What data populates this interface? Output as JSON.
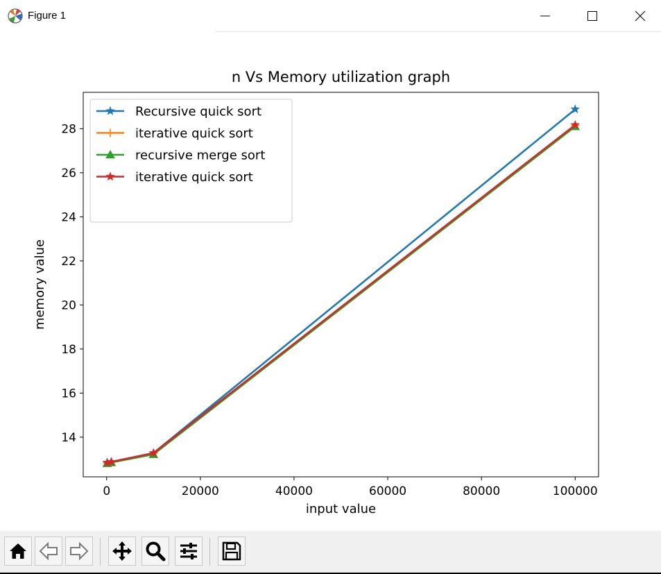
{
  "window": {
    "title": "Figure 1",
    "icon": "matplotlib-logo-icon",
    "controls": [
      "minimize-icon",
      "maximize-icon",
      "close-icon"
    ]
  },
  "toolbar": {
    "buttons": [
      {
        "name": "home-button",
        "icon": "home-icon"
      },
      {
        "name": "back-button",
        "icon": "arrow-left-icon"
      },
      {
        "name": "forward-button",
        "icon": "arrow-right-icon"
      },
      {
        "name": "pan-button",
        "icon": "move-arrows-icon"
      },
      {
        "name": "zoom-button",
        "icon": "magnifier-icon"
      },
      {
        "name": "configure-subplots-button",
        "icon": "sliders-icon"
      },
      {
        "name": "save-button",
        "icon": "floppy-disk-icon"
      }
    ]
  },
  "chart_data": {
    "type": "line",
    "title": "n Vs Memory utilization graph",
    "xlabel": "input value",
    "ylabel": "memory value",
    "xlim": [
      -4995,
      104995
    ],
    "ylim": [
      12.2,
      29.65
    ],
    "xticks": [
      0,
      20000,
      40000,
      60000,
      80000,
      100000
    ],
    "yticks": [
      14,
      16,
      18,
      20,
      22,
      24,
      26,
      28
    ],
    "grid": false,
    "legend_position": "upper left",
    "x": [
      100,
      1000,
      10000,
      100000
    ],
    "series": [
      {
        "name": "Recursive quick sort",
        "color": "#1f77b4",
        "marker": "star",
        "values": [
          12.85,
          12.88,
          13.28,
          28.88
        ]
      },
      {
        "name": "iterative quick sort",
        "color": "#ff7f0e",
        "marker": "plus",
        "values": [
          12.83,
          12.87,
          13.27,
          28.15
        ]
      },
      {
        "name": "recursive merge sort",
        "color": "#2ca02c",
        "marker": "triangle",
        "values": [
          12.81,
          12.85,
          13.22,
          28.1
        ]
      },
      {
        "name": "iterative quick sort",
        "color": "#d62728",
        "marker": "star",
        "values": [
          12.84,
          12.88,
          13.28,
          28.17
        ]
      }
    ]
  }
}
